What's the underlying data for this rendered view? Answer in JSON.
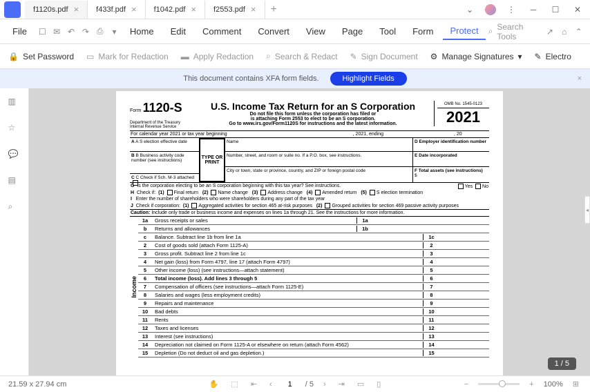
{
  "tabs": [
    {
      "name": "f1120s.pdf",
      "active": true
    },
    {
      "name": "f433f.pdf",
      "active": false
    },
    {
      "name": "f1042.pdf",
      "active": false
    },
    {
      "name": "f2553.pdf",
      "active": false
    }
  ],
  "menu": {
    "file": "File",
    "items": [
      "Home",
      "Edit",
      "Comment",
      "Convert",
      "View",
      "Page",
      "Tool",
      "Form",
      "Protect"
    ],
    "active": "Protect",
    "search": "Search Tools"
  },
  "toolbar": {
    "set_password": "Set Password",
    "mark_redaction": "Mark for Redaction",
    "apply_redaction": "Apply Redaction",
    "search_redact": "Search & Redact",
    "sign_document": "Sign Document",
    "manage_signatures": "Manage Signatures",
    "electro": "Electro"
  },
  "banner": {
    "text": "This document contains XFA form fields.",
    "button": "Highlight Fields"
  },
  "form": {
    "number_label": "Form",
    "number": "1120-S",
    "title": "U.S. Income Tax Return for an S Corporation",
    "subtitle1": "Do not file this form unless the corporation has filed or",
    "subtitle2": "is attaching Form 2553 to elect to be an S corporation.",
    "subtitle3": "Go to www.irs.gov/Form1120S for instructions and the latest information.",
    "omb": "OMB No. 1545-0123",
    "year": "2021",
    "dept": "Department of the Treasury",
    "irs": "Internal Revenue Service",
    "calendar": "For calendar year 2021 or tax year beginning",
    "ending": ", 2021, ending",
    "year20": ", 20",
    "boxA": "A S election effective date",
    "boxB": "B Business activity code number (see instructions)",
    "boxC": "C Check if Sch. M-3 attached",
    "boxD": "D Employer identification number",
    "boxE": "E Date incorporated",
    "boxF": "F Total assets (see instructions)",
    "type_print": "TYPE OR PRINT",
    "name_label": "Name",
    "address_label": "Number, street, and room or suite no. If a P.O. box, see instructions.",
    "city_label": "City or town, state or province, country, and ZIP or foreign postal code",
    "lineG": "Is the corporation electing to be an S corporation beginning with this tax year? See instructions.",
    "lineH": "Check if:",
    "h1": "Final return",
    "h2": "Name change",
    "h3": "Address change",
    "h4": "Amended return",
    "h5": "S election termination",
    "lineI": "Enter the number of shareholders who were shareholders during any part of the tax year",
    "lineJ": "Check if corporation:",
    "j1": "Aggregated activities for section 465 at-risk purposes",
    "j2": "Grouped activities for section 469 passive activity purposes",
    "caution": "Caution:",
    "caution_text": "Include only trade or business income and expenses on lines 1a through 21. See the instructions for more information.",
    "yes": "Yes",
    "no": "No",
    "dollar": "$",
    "income_label": "Income",
    "deductions_label": "Deductions (see instructions for limitations)",
    "lines": [
      {
        "n": "1a",
        "t": "Gross receipts or sales",
        "box": "1a"
      },
      {
        "n": "b",
        "t": "Returns and allowances",
        "box": "1b"
      },
      {
        "n": "c",
        "t": "Balance. Subtract line 1b from line 1a",
        "box": "1c"
      },
      {
        "n": "2",
        "t": "Cost of goods sold (attach Form 1125-A)",
        "box": "2"
      },
      {
        "n": "3",
        "t": "Gross profit. Subtract line 2 from line 1c",
        "box": "3"
      },
      {
        "n": "4",
        "t": "Net gain (loss) from Form 4797, line 17 (attach Form 4797)",
        "box": "4"
      },
      {
        "n": "5",
        "t": "Other income (loss) (see instructions—attach statement)",
        "box": "5"
      },
      {
        "n": "6",
        "t": "Total income (loss). Add lines 3 through 5",
        "box": "6",
        "bold": true
      },
      {
        "n": "7",
        "t": "Compensation of officers (see instructions—attach Form 1125-E)",
        "box": "7"
      },
      {
        "n": "8",
        "t": "Salaries and wages (less employment credits)",
        "box": "8"
      },
      {
        "n": "9",
        "t": "Repairs and maintenance",
        "box": "9"
      },
      {
        "n": "10",
        "t": "Bad debts",
        "box": "10"
      },
      {
        "n": "11",
        "t": "Rents",
        "box": "11"
      },
      {
        "n": "12",
        "t": "Taxes and licenses",
        "box": "12"
      },
      {
        "n": "13",
        "t": "Interest (see instructions)",
        "box": "13"
      },
      {
        "n": "14",
        "t": "Depreciation not claimed on Form 1125-A or elsewhere on return (attach Form 4562)",
        "box": "14"
      },
      {
        "n": "15",
        "t": "Depletion (Do not deduct oil and gas depletion.)",
        "box": "15"
      }
    ]
  },
  "status": {
    "dimensions": "21.59 x 27.94 cm",
    "current_page": "1",
    "total_pages": "/ 5",
    "zoom": "100%",
    "page_indicator": "1 / 5"
  }
}
